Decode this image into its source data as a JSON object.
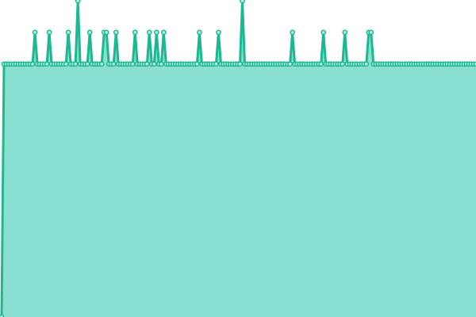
{
  "colors": {
    "area_fill": "#8ae0d0",
    "line": "#1cb892",
    "point_fill": "#b8eee3",
    "background": "#ffffff"
  },
  "chart_data": {
    "type": "area",
    "title": "",
    "xlabel": "",
    "ylabel": "",
    "grid": false,
    "legend": "none",
    "ylim": [
      0,
      100
    ],
    "series": [
      {
        "name": "",
        "values": [
          0,
          80,
          80,
          80,
          80,
          80,
          80,
          80,
          80,
          80,
          80,
          80,
          80,
          80,
          80,
          80,
          80,
          80,
          80,
          80,
          80,
          80,
          80,
          80,
          80,
          80,
          80,
          80,
          80,
          80,
          80,
          80,
          80,
          80,
          80,
          80,
          80,
          80,
          80,
          80,
          80,
          80,
          80,
          80,
          80,
          80,
          80,
          80,
          80,
          80,
          80,
          80,
          80,
          80,
          80,
          80,
          80,
          80,
          80,
          80,
          80,
          80,
          80,
          80,
          80,
          80,
          80,
          80,
          80,
          80,
          80,
          80,
          80,
          80,
          80,
          80,
          80,
          80,
          80,
          80,
          80,
          80,
          80,
          80,
          80,
          80,
          80,
          80,
          80,
          80,
          80,
          80,
          80,
          80,
          80,
          80,
          80,
          80,
          80,
          80,
          80,
          80,
          80,
          80,
          80,
          80,
          80,
          80,
          80,
          80,
          80,
          80,
          80,
          80,
          80,
          80,
          80,
          80,
          80,
          80,
          80,
          80,
          80,
          80,
          80,
          80,
          80,
          80,
          80,
          80,
          80,
          80,
          80,
          80,
          80,
          80,
          80,
          80,
          80,
          80,
          80,
          80,
          80,
          80,
          80,
          80,
          80,
          80,
          80,
          80,
          80,
          80,
          80,
          80,
          80,
          80,
          80,
          80,
          80,
          80,
          80,
          80,
          80,
          80,
          80,
          80,
          80,
          80,
          80,
          80,
          80,
          80,
          80,
          80,
          80,
          80,
          80,
          80,
          80,
          80,
          80,
          80,
          80,
          80,
          80,
          80,
          80,
          80,
          80,
          80,
          80,
          80,
          80,
          80,
          80,
          80,
          80,
          80,
          80,
          80
        ],
        "spikes": [
          [
            14,
            90
          ],
          [
            20,
            90
          ],
          [
            28,
            90
          ],
          [
            32,
            100
          ],
          [
            37,
            90
          ],
          [
            43,
            90
          ],
          [
            44,
            90
          ],
          [
            48,
            90
          ],
          [
            56,
            90
          ],
          [
            62,
            90
          ],
          [
            65,
            90
          ],
          [
            68,
            90
          ],
          [
            83,
            90
          ],
          [
            91,
            90
          ],
          [
            101,
            100
          ],
          [
            122,
            90
          ],
          [
            135,
            90
          ],
          [
            144,
            90
          ],
          [
            154,
            90
          ],
          [
            155,
            90
          ]
        ]
      }
    ]
  }
}
